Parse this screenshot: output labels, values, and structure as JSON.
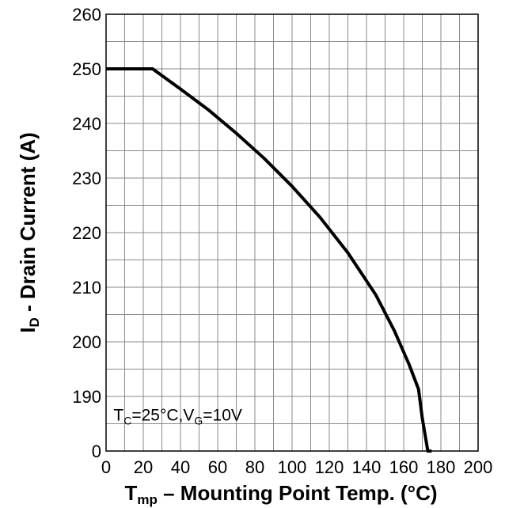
{
  "chart_data": {
    "type": "line",
    "xlabel": {
      "main": "T",
      "sub": "mp",
      "rest": " – Mounting Point Temp.  (°C)"
    },
    "ylabel": {
      "main": "I",
      "sub": "D",
      "rest": " - Drain Current (A)"
    },
    "xlim": [
      0,
      200
    ],
    "ylim": [
      180,
      260
    ],
    "y_axis_break": true,
    "y_bottom_label": "0",
    "x_ticks": [
      0,
      20,
      40,
      60,
      80,
      100,
      120,
      140,
      160,
      180,
      200
    ],
    "y_ticks": [
      190,
      200,
      210,
      220,
      230,
      240,
      250,
      260
    ],
    "y_tick_labels": [
      "0",
      "190",
      "200",
      "210",
      "220",
      "230",
      "240",
      "250",
      "260"
    ],
    "x_tick_labels": [
      "0",
      "20",
      "40",
      "60",
      "80",
      "100",
      "120",
      "140",
      "160",
      "180",
      "200"
    ],
    "grid": true,
    "annotation": {
      "parts": [
        {
          "text": "T",
          "sub": false
        },
        {
          "text": "C",
          "sub": true
        },
        {
          "text": "=25°C,V",
          "sub": false
        },
        {
          "text": "G",
          "sub": true
        },
        {
          "text": "=10V",
          "sub": false
        }
      ]
    },
    "series": [
      {
        "x": [
          0,
          25,
          40,
          55,
          70,
          85,
          100,
          115,
          130,
          145,
          155,
          163,
          168,
          170,
          173,
          175
        ],
        "y": [
          250,
          250,
          246.3,
          242.5,
          238.2,
          233.6,
          228.5,
          222.8,
          216.3,
          208.6,
          202,
          195.8,
          191.3,
          186,
          180,
          176
        ]
      }
    ]
  }
}
